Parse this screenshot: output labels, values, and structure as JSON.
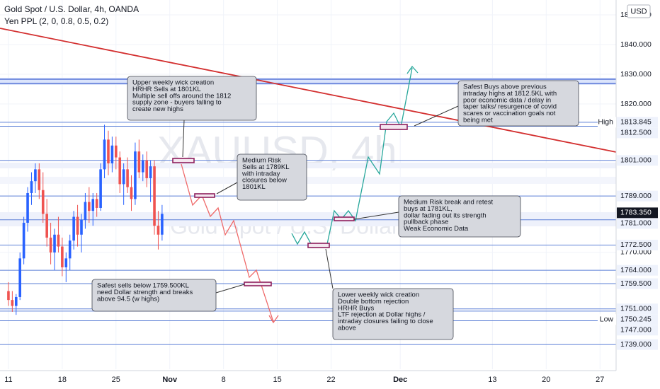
{
  "header": {
    "title": "Gold Spot / U.S. Dollar, 4h, OANDA",
    "indicator": "Yen PPL (2, 0, 0.8, 0.5, 0.2)",
    "currency": "USD"
  },
  "watermark": {
    "symbol": "XAUUSD, 4h",
    "name": "Gold Spot / U.S. Dollar"
  },
  "chart_data": {
    "type": "candlestick",
    "up_color": "#2962ff",
    "down_color": "#ef5350",
    "x": [
      0,
      0.5,
      1,
      1.5,
      2,
      2.5,
      3,
      3.5,
      4,
      4.5,
      5,
      5.5,
      6,
      6.5,
      7,
      7.5,
      8,
      8.5,
      9,
      9.5,
      10,
      10.5,
      11,
      11.5,
      12,
      12.5,
      13,
      13.5,
      14,
      14.5,
      15,
      15.5,
      16,
      16.5,
      17,
      17.5,
      18,
      18.5,
      19,
      19.5,
      20
    ],
    "open": [
      1757,
      1754,
      1752,
      1755,
      1768,
      1780,
      1790,
      1794,
      1798,
      1791,
      1783,
      1775,
      1770,
      1776,
      1772,
      1765,
      1768,
      1774,
      1782,
      1776,
      1781,
      1787,
      1784,
      1788,
      1785,
      1798,
      1808,
      1800,
      1806,
      1802,
      1793,
      1798,
      1792,
      1788,
      1804,
      1797,
      1801,
      1795,
      1799,
      1779,
      1776
    ],
    "high": [
      1760,
      1757,
      1756,
      1770,
      1782,
      1792,
      1797,
      1800,
      1800,
      1797,
      1788,
      1780,
      1778,
      1782,
      1775,
      1770,
      1776,
      1784,
      1786,
      1783,
      1790,
      1792,
      1790,
      1790,
      1800,
      1813,
      1811,
      1809,
      1809,
      1804,
      1800,
      1802,
      1796,
      1807,
      1808,
      1803,
      1804,
      1801,
      1801,
      1784,
      1786
    ],
    "low": [
      1752,
      1750,
      1749,
      1754,
      1766,
      1777,
      1786,
      1790,
      1788,
      1780,
      1772,
      1766,
      1764,
      1770,
      1762,
      1760,
      1764,
      1771,
      1772,
      1770,
      1778,
      1780,
      1779,
      1782,
      1784,
      1795,
      1796,
      1797,
      1798,
      1790,
      1786,
      1790,
      1784,
      1786,
      1795,
      1794,
      1792,
      1787,
      1776,
      1771,
      1774
    ],
    "close": [
      1754,
      1752,
      1755,
      1768,
      1780,
      1790,
      1794,
      1798,
      1791,
      1783,
      1775,
      1770,
      1776,
      1772,
      1765,
      1768,
      1774,
      1782,
      1776,
      1781,
      1787,
      1784,
      1788,
      1785,
      1798,
      1808,
      1800,
      1806,
      1802,
      1793,
      1798,
      1792,
      1788,
      1804,
      1797,
      1801,
      1795,
      1799,
      1779,
      1776,
      1783
    ],
    "xlim": [
      -1.1,
      79.1
    ],
    "xticks": [
      {
        "value": 0,
        "label": "11"
      },
      {
        "value": 7,
        "label": "18"
      },
      {
        "value": 14,
        "label": "25"
      },
      {
        "value": 21,
        "label": "Nov"
      },
      {
        "value": 28,
        "label": "8"
      },
      {
        "value": 35,
        "label": "15"
      },
      {
        "value": 42,
        "label": "22"
      },
      {
        "value": 51,
        "label": "Dec"
      },
      {
        "value": 63,
        "label": "13"
      },
      {
        "value": 70,
        "label": "20"
      },
      {
        "value": 77,
        "label": "27"
      }
    ],
    "ylim": [
      1730.7,
      1855
    ],
    "yticks": [
      {
        "value": 1850,
        "label": "1850.000"
      },
      {
        "value": 1840,
        "label": "1840.000"
      },
      {
        "value": 1830,
        "label": "1830.000"
      },
      {
        "value": 1820,
        "label": "1820.000"
      },
      {
        "value": 1770,
        "label": "1770.000"
      }
    ],
    "grid": true,
    "levels": [
      {
        "value": 1813.845,
        "label": "1813.845",
        "tag": "High"
      },
      {
        "value": 1812.5,
        "label": "1812.500"
      },
      {
        "value": 1801,
        "label": "1801.000"
      },
      {
        "value": 1789,
        "label": "1789.000"
      },
      {
        "value": 1781,
        "label": "1781.000"
      },
      {
        "value": 1772.5,
        "label": "1772.500"
      },
      {
        "value": 1764,
        "label": "1764.000"
      },
      {
        "value": 1759.5,
        "label": "1759.500"
      },
      {
        "value": 1751,
        "label": "1751.000"
      },
      {
        "value": 1750.245,
        "label": "1750.245",
        "tag": "Low"
      },
      {
        "value": 1747,
        "label": "1747.000"
      },
      {
        "value": 1739,
        "label": "1739.000"
      }
    ],
    "level_color": "#5b7fd6",
    "last_price": {
      "value": 1783.35,
      "label": "1783.350"
    },
    "annotations": [
      {
        "lines": [
          "Upper weekly wick creation",
          "HRHR Sells at 1801KL",
          "Multiple sell offs around the 1812",
          "supply zone - buyers falling to",
          "create new highs"
        ]
      },
      {
        "lines": [
          "Medium Risk",
          "Sells at 1789KL",
          "with intraday",
          "closures below",
          "1801KL"
        ]
      },
      {
        "lines": [
          "Safest sells below 1759.500KL",
          "need Dollar strength and breaks",
          "above 94.5 (w highs)"
        ]
      },
      {
        "lines": [
          "Lower weekly wick creation",
          "Double bottom rejection",
          "HRHR Buys",
          "LTF rejection at Dollar highs /",
          "intraday closures failing to close",
          "above"
        ]
      },
      {
        "lines": [
          "Medium Risk break and retest",
          "buys at 1781KL,",
          "dollar fading out its strength",
          "pullback phase",
          "Weak Economic Data"
        ]
      },
      {
        "lines": [
          "Safest Buys above previous",
          "intraday highs at 1812.5KL with",
          "poor economic data / delay in",
          "taper talks/ resurgence of covid",
          "scares or vaccination goals not",
          "being met"
        ]
      }
    ]
  }
}
